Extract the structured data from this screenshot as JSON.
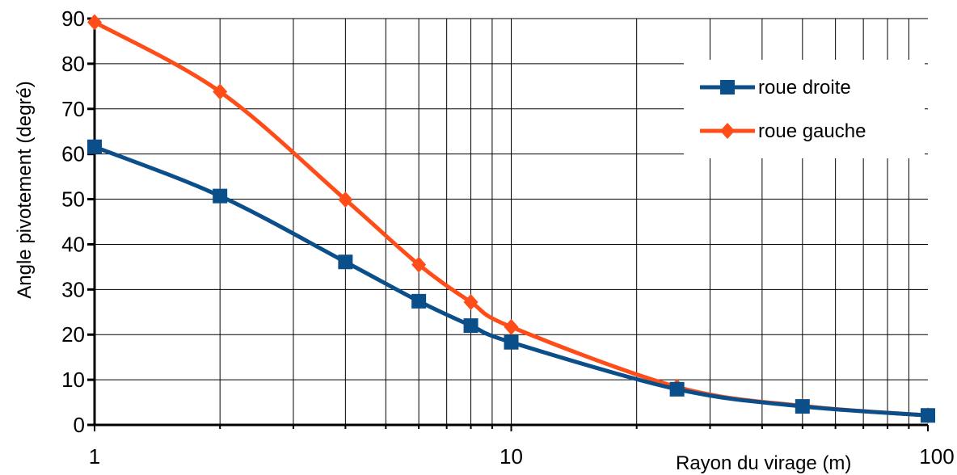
{
  "chart_data": {
    "type": "line",
    "xscale": "log",
    "xlim": [
      1,
      100
    ],
    "ylim": [
      0,
      90
    ],
    "x_ticks": [
      1,
      10,
      100
    ],
    "x_tick_labels": [
      "1",
      "10",
      "100"
    ],
    "y_ticks": [
      0,
      10,
      20,
      30,
      40,
      50,
      60,
      70,
      80,
      90
    ],
    "y_tick_labels": [
      "0",
      "10",
      "20",
      "30",
      "40",
      "50",
      "60",
      "70",
      "80",
      "90"
    ],
    "xlabel": "Rayon du virage (m)",
    "ylabel": "Angle pivotement (degré)",
    "grid": true,
    "legend_position": "top-right",
    "series": [
      {
        "name": "roue droite",
        "color": "#0b4f8a",
        "marker": "square",
        "x": [
          1,
          2,
          4,
          6,
          8,
          10,
          25,
          50,
          100
        ],
        "values": [
          61.6,
          50.7,
          36.1,
          27.4,
          22.0,
          18.3,
          7.9,
          4.1,
          2.1
        ]
      },
      {
        "name": "roue gauche",
        "color": "#ff4d1a",
        "marker": "diamond",
        "x": [
          1,
          2,
          4,
          6,
          8,
          10,
          25,
          50,
          100
        ],
        "values": [
          89.2,
          73.8,
          49.9,
          35.5,
          27.2,
          21.7,
          8.4,
          4.2,
          2.1
        ]
      }
    ]
  }
}
